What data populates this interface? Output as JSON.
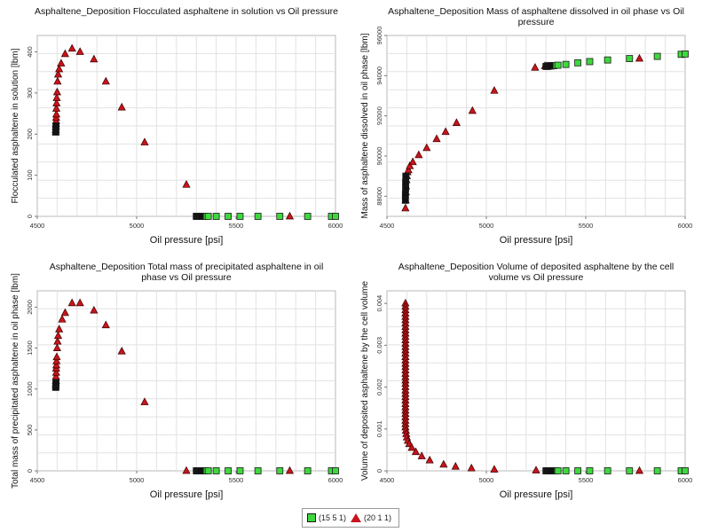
{
  "colors": {
    "series1": "#3ed83e",
    "series2": "#c8141b",
    "overlap": "#111111",
    "grid": "#e2e2e2"
  },
  "legend": {
    "items": [
      {
        "label": "(15 5 1)",
        "marker": "square",
        "color": "#3ed83e"
      },
      {
        "label": "(20 1 1)",
        "marker": "triangle",
        "color": "#c8141b"
      }
    ]
  },
  "chart_data": [
    {
      "type": "scatter",
      "title": "Asphaltene_Deposition Flocculated asphaltene in solution vs Oil pressure",
      "xlabel": "Oil pressure [psi]",
      "ylabel": "Flocculated asphaltene in solution [lbm]",
      "xlim": [
        4500,
        6000
      ],
      "ylim": [
        0,
        440
      ],
      "xticks": [
        "4500",
        "5000",
        "5500",
        "6000"
      ],
      "yticks": [
        "0",
        "100",
        "200",
        "300",
        "400"
      ],
      "grid": true,
      "series": [
        {
          "name": "(15 5 1)",
          "marker": "square",
          "x": [
            5305,
            5315,
            5325,
            5340,
            5360,
            5400,
            5460,
            5520,
            5610,
            5720,
            5860,
            5980,
            6000
          ],
          "y": [
            0,
            0,
            0,
            0,
            0,
            0,
            0,
            0,
            0,
            0,
            0,
            0,
            0
          ]
        },
        {
          "name": "(20 1 1)",
          "marker": "triangle",
          "x": [
            4593,
            4593,
            4594,
            4594,
            4595,
            4595,
            4596,
            4596,
            4597,
            4598,
            4600,
            4602,
            4605,
            4610,
            4620,
            4640,
            4675,
            4715,
            4785,
            4845,
            4925,
            5040,
            5250,
            5770
          ],
          "y": [
            205,
            210,
            218,
            225,
            232,
            240,
            248,
            262,
            275,
            288,
            302,
            328,
            345,
            358,
            372,
            395,
            408,
            400,
            382,
            328,
            265,
            180,
            77,
            0
          ]
        }
      ],
      "overlap": {
        "x": [
          4593,
          4593,
          4594,
          5300,
          5305,
          5310,
          5315,
          5320
        ],
        "y": [
          205,
          212,
          220,
          0,
          0,
          0,
          0,
          0
        ]
      }
    },
    {
      "type": "scatter",
      "title": "Asphaltene_Deposition Mass of asphaltene dissolved in oil phase vs Oil pressure",
      "xlabel": "Oil pressure [psi]",
      "ylabel": "Mass of asphaltene dissolved in oil phase [lbm]",
      "xlim": [
        4500,
        6000
      ],
      "ylim": [
        87000,
        96000
      ],
      "xticks": [
        "4500",
        "5000",
        "5500",
        "6000"
      ],
      "yticks": [
        "88000",
        "90000",
        "92000",
        "94000",
        "96000"
      ],
      "grid": true,
      "series": [
        {
          "name": "(15 5 1)",
          "marker": "square",
          "x": [
            5310,
            5325,
            5340,
            5360,
            5400,
            5460,
            5520,
            5610,
            5720,
            5860,
            5980,
            6000
          ],
          "y": [
            94460,
            94480,
            94500,
            94520,
            94560,
            94640,
            94700,
            94780,
            94850,
            94960,
            95060,
            95080
          ]
        },
        {
          "name": "(20 1 1)",
          "marker": "triangle",
          "x": [
            4593,
            4594,
            4595,
            4596,
            4598,
            4600,
            4603,
            4608,
            4615,
            4630,
            4660,
            4700,
            4750,
            4795,
            4850,
            4930,
            5040,
            5245,
            5295,
            5770
          ],
          "y": [
            87400,
            87800,
            88200,
            88500,
            88800,
            89000,
            89200,
            89300,
            89500,
            89700,
            90050,
            90400,
            90850,
            91200,
            91650,
            92250,
            93250,
            94400,
            94480,
            94850
          ]
        }
      ],
      "overlap": {
        "x": [
          4593,
          4593,
          4594,
          4594,
          4595,
          5300,
          5305,
          5310,
          5315,
          5320
        ],
        "y": [
          87800,
          88100,
          88400,
          88700,
          89000,
          94460,
          94470,
          94480,
          94490,
          94500
        ]
      }
    },
    {
      "type": "scatter",
      "title": "Asphaltene_Deposition Total mass of precipitated asphaltene in oil phase vs Oil pressure",
      "xlabel": "Oil pressure [psi]",
      "ylabel": "Total mass of precipitated asphaltene in oil phase [lbm]",
      "xlim": [
        4500,
        6000
      ],
      "ylim": [
        0,
        2200
      ],
      "xticks": [
        "4500",
        "5000",
        "5500",
        "6000"
      ],
      "yticks": [
        "0",
        "500",
        "1000",
        "1500",
        "2000"
      ],
      "grid": true,
      "series": [
        {
          "name": "(15 5 1)",
          "marker": "square",
          "x": [
            5305,
            5315,
            5325,
            5340,
            5360,
            5400,
            5460,
            5520,
            5610,
            5720,
            5860,
            5980,
            6000
          ],
          "y": [
            0,
            0,
            0,
            0,
            0,
            0,
            0,
            0,
            0,
            0,
            0,
            0,
            0
          ]
        },
        {
          "name": "(20 1 1)",
          "marker": "triangle",
          "x": [
            4593,
            4593,
            4594,
            4594,
            4595,
            4595,
            4596,
            4597,
            4598,
            4600,
            4602,
            4605,
            4610,
            4625,
            4640,
            4675,
            4715,
            4785,
            4845,
            4925,
            5040,
            5250,
            5770
          ],
          "y": [
            1030,
            1060,
            1100,
            1150,
            1200,
            1250,
            1290,
            1340,
            1390,
            1500,
            1580,
            1650,
            1730,
            1850,
            1930,
            2050,
            2050,
            1960,
            1780,
            1460,
            840,
            0,
            0
          ]
        }
      ],
      "overlap": {
        "x": [
          4593,
          4593,
          4594,
          5300,
          5305,
          5310,
          5315,
          5320
        ],
        "y": [
          1020,
          1050,
          1080,
          0,
          0,
          0,
          0,
          0
        ]
      }
    },
    {
      "type": "scatter",
      "title": "Asphaltene_Deposition Volume of deposited asphaltene by the cell volume vs Oil pressure",
      "xlabel": "Oil pressure [psi]",
      "ylabel": "Volume of deposited asphaltene by the cell volume",
      "xlim": [
        4500,
        6000
      ],
      "ylim": [
        0,
        0.0043
      ],
      "xticks": [
        "4500",
        "5000",
        "5500",
        "6000"
      ],
      "yticks": [
        "0",
        "0.001",
        "0.002",
        "0.003",
        "0.004"
      ],
      "grid": true,
      "series": [
        {
          "name": "(15 5 1)",
          "marker": "square",
          "x": [
            5305,
            5315,
            5325,
            5340,
            5360,
            5400,
            5460,
            5520,
            5610,
            5720,
            5860,
            5980,
            6000
          ],
          "y": [
            0,
            0,
            0,
            0,
            0,
            0,
            0,
            0,
            0,
            0,
            0,
            0,
            0
          ]
        },
        {
          "name": "(20 1 1)",
          "marker": "triangle",
          "x": [
            4593,
            4593,
            4593,
            4593,
            4593,
            4593,
            4593,
            4593,
            4593,
            4593,
            4593,
            4593,
            4593,
            4593,
            4593,
            4593,
            4593,
            4593,
            4593,
            4593,
            4593,
            4593,
            4593,
            4593,
            4593,
            4593,
            4593,
            4593,
            4593,
            4593,
            4593,
            4593,
            4593,
            4593,
            4593,
            4593,
            4593,
            4593,
            4595,
            4597,
            4600,
            4605,
            4612,
            4625,
            4645,
            4675,
            4715,
            4785,
            4845,
            4925,
            5040,
            5250,
            5770
          ],
          "y": [
            0.004,
            0.00392,
            0.00384,
            0.00376,
            0.00368,
            0.0036,
            0.00352,
            0.00344,
            0.00336,
            0.00328,
            0.0032,
            0.00312,
            0.00304,
            0.00296,
            0.00288,
            0.0028,
            0.00272,
            0.00264,
            0.00256,
            0.00248,
            0.0024,
            0.00232,
            0.00224,
            0.00216,
            0.00208,
            0.002,
            0.00192,
            0.00184,
            0.00176,
            0.00168,
            0.0016,
            0.00152,
            0.00144,
            0.00136,
            0.00128,
            0.0012,
            0.00112,
            0.00104,
            0.00096,
            0.00088,
            0.0008,
            0.00072,
            0.00064,
            0.00055,
            0.00045,
            0.00035,
            0.00025,
            0.00015,
            0.0001,
            6e-05,
            3e-05,
            1e-05,
            0
          ]
        }
      ],
      "overlap": {
        "x": [
          5300,
          5305,
          5310,
          5315,
          5320,
          5325
        ],
        "y": [
          0,
          0,
          0,
          0,
          0,
          0
        ]
      }
    }
  ]
}
